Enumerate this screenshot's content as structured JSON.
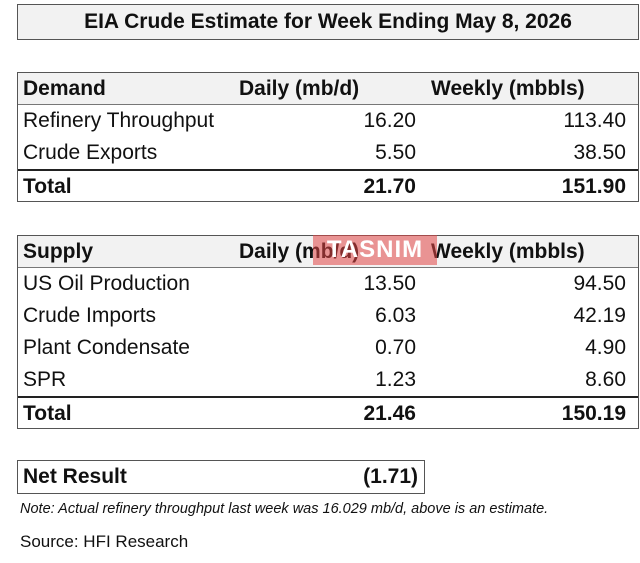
{
  "title": "EIA Crude Estimate for Week Ending May 8, 2026",
  "demand": {
    "header": {
      "label": "Demand",
      "daily": "Daily (mb/d)",
      "weekly": "Weekly (mbbls)"
    },
    "rows": [
      {
        "label": "Refinery Throughput",
        "daily": "16.20",
        "weekly": "113.40"
      },
      {
        "label": "Crude Exports",
        "daily": "5.50",
        "weekly": "38.50"
      }
    ],
    "total": {
      "label": "Total",
      "daily": "21.70",
      "weekly": "151.90"
    }
  },
  "supply": {
    "header": {
      "label": "Supply",
      "daily": "Daily (mb/d)",
      "weekly": "Weekly (mbbls)"
    },
    "rows": [
      {
        "label": "US Oil Production",
        "daily": "13.50",
        "weekly": "94.50"
      },
      {
        "label": "Crude Imports",
        "daily": "6.03",
        "weekly": "42.19"
      },
      {
        "label": "Plant Condensate",
        "daily": "0.70",
        "weekly": "4.90"
      },
      {
        "label": "SPR",
        "daily": "1.23",
        "weekly": "8.60"
      }
    ],
    "total": {
      "label": "Total",
      "daily": "21.46",
      "weekly": "150.19"
    }
  },
  "net_result": {
    "label": "Net Result",
    "value": "(1.71)"
  },
  "note": "Note: Actual refinery throughput last week was 16.029 mb/d, above is an estimate.",
  "source": "Source: HFI Research",
  "watermark": "TASNIM"
}
